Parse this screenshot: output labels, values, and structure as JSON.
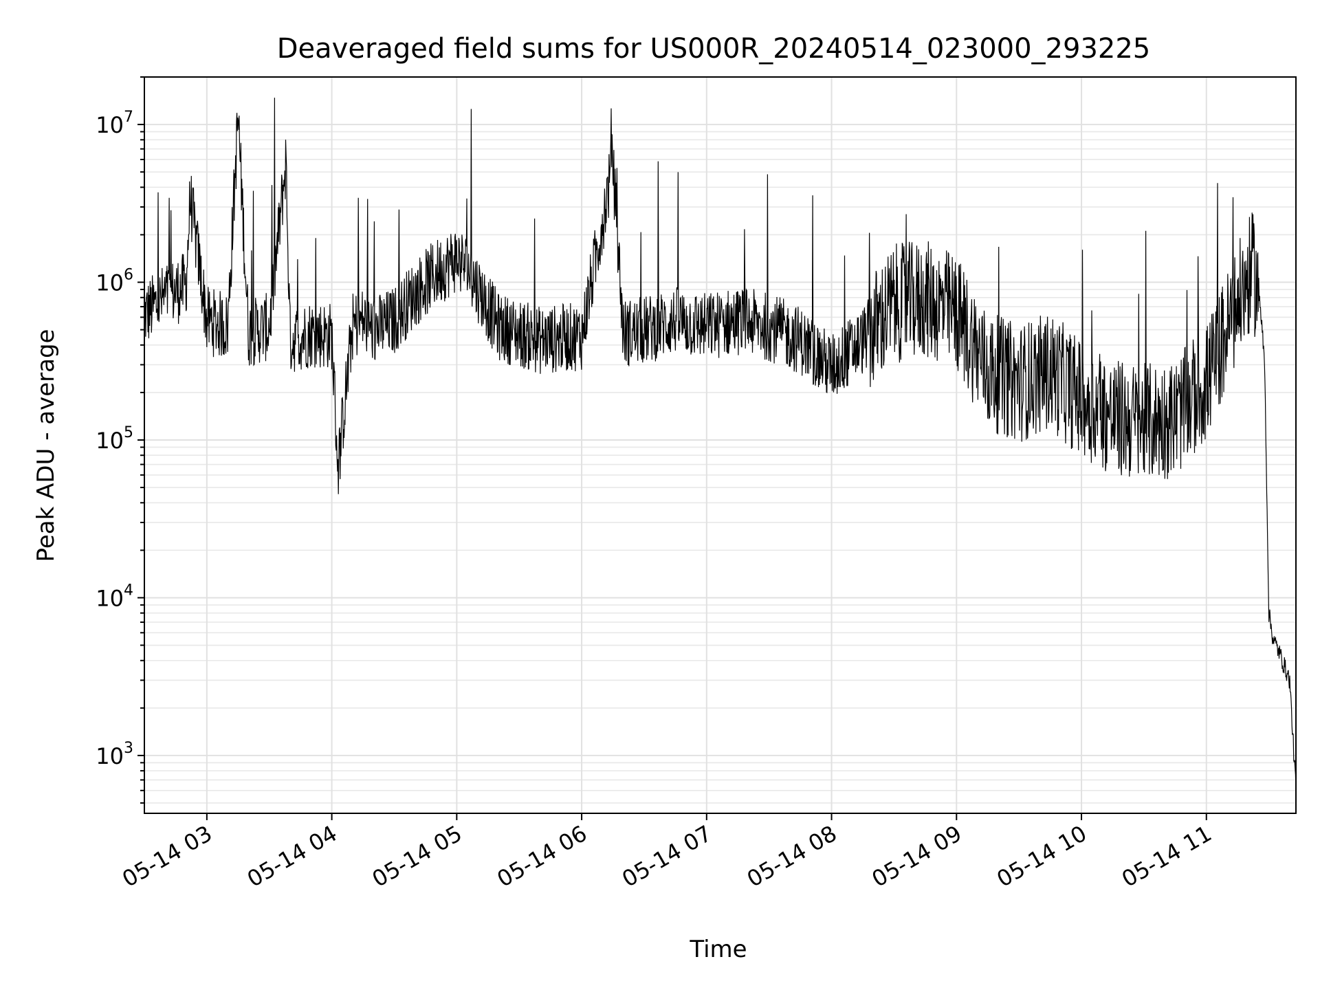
{
  "chart_data": {
    "type": "line",
    "title": "Deaveraged field sums for US000R_20240514_023000_293225",
    "xlabel": "Time",
    "ylabel": "Peak ADU - average",
    "yscale": "log",
    "ylim": [
      430,
      20000000
    ],
    "xlim": [
      "2024-05-14 02:30",
      "2024-05-14 11:43"
    ],
    "grid": "on (major and minor)",
    "line_color": "#000000",
    "x_ticks": [
      "05-14 03",
      "05-14 04",
      "05-14 05",
      "05-14 06",
      "05-14 07",
      "05-14 08",
      "05-14 09",
      "05-14 10",
      "05-14 11"
    ],
    "y_ticks": [
      {
        "value": 1000,
        "base": "10",
        "exp": "3"
      },
      {
        "value": 10000,
        "base": "10",
        "exp": "4"
      },
      {
        "value": 100000,
        "base": "10",
        "exp": "5"
      },
      {
        "value": 1000000,
        "base": "10",
        "exp": "6"
      },
      {
        "value": 10000000,
        "base": "10",
        "exp": "7"
      }
    ],
    "series": [
      {
        "x": [
          "2024-05-14 02:30",
          "2024-05-14 02:40",
          "2024-05-14 02:50",
          "2024-05-14 02:52",
          "2024-05-14 03:00",
          "2024-05-14 03:10",
          "2024-05-14 03:15",
          "2024-05-14 03:20",
          "2024-05-14 03:30",
          "2024-05-14 03:38",
          "2024-05-14 03:40",
          "2024-05-14 03:50",
          "2024-05-14 04:00",
          "2024-05-14 04:03",
          "2024-05-14 04:10",
          "2024-05-14 04:15",
          "2024-05-14 04:20",
          "2024-05-14 04:30",
          "2024-05-14 04:40",
          "2024-05-14 04:50",
          "2024-05-14 05:00",
          "2024-05-14 05:05",
          "2024-05-14 05:20",
          "2024-05-14 05:40",
          "2024-05-14 06:00",
          "2024-05-14 06:15",
          "2024-05-14 06:20",
          "2024-05-14 06:30",
          "2024-05-14 06:45",
          "2024-05-14 07:00",
          "2024-05-14 07:15",
          "2024-05-14 07:30",
          "2024-05-14 07:45",
          "2024-05-14 08:00",
          "2024-05-14 08:15",
          "2024-05-14 08:30",
          "2024-05-14 08:45",
          "2024-05-14 09:00",
          "2024-05-14 09:15",
          "2024-05-14 09:30",
          "2024-05-14 09:45",
          "2024-05-14 10:00",
          "2024-05-14 10:15",
          "2024-05-14 10:30",
          "2024-05-14 10:45",
          "2024-05-14 11:00",
          "2024-05-14 11:15",
          "2024-05-14 11:22",
          "2024-05-14 11:25",
          "2024-05-14 11:28",
          "2024-05-14 11:30",
          "2024-05-14 11:32",
          "2024-05-14 11:35",
          "2024-05-14 11:40",
          "2024-05-14 11:43"
        ],
        "values": [
          650000,
          850000,
          1000000,
          3600000,
          600000,
          550000,
          12000000,
          500000,
          550000,
          6200000,
          450000,
          500000,
          480000,
          70000,
          550000,
          600000,
          520000,
          600000,
          900000,
          1200000,
          1500000,
          1300000,
          550000,
          450000,
          480000,
          6000000,
          500000,
          520000,
          600000,
          550000,
          600000,
          550000,
          450000,
          300000,
          450000,
          800000,
          850000,
          700000,
          300000,
          250000,
          300000,
          200000,
          150000,
          140000,
          150000,
          250000,
          800000,
          1300000,
          1000000,
          300000,
          8000,
          5500,
          4500,
          3000,
          600
        ]
      }
    ]
  }
}
